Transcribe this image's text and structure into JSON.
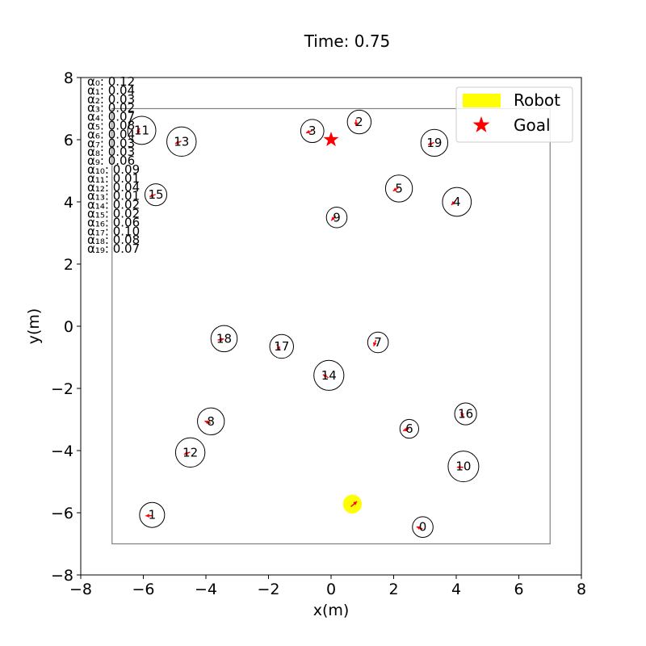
{
  "title": "Time: 0.75",
  "chart_data": {
    "type": "scatter",
    "title": "Time: 0.75",
    "xlabel": "x(m)",
    "ylabel": "y(m)",
    "xlim": [
      -8,
      8
    ],
    "ylim": [
      -8,
      8
    ],
    "xticks": [
      -8,
      -6,
      -4,
      -2,
      0,
      2,
      4,
      6,
      8
    ],
    "yticks": [
      -8,
      -6,
      -4,
      -2,
      0,
      2,
      4,
      6,
      8
    ],
    "grid": false,
    "legend_position": "top-right",
    "legend": [
      {
        "label": "Robot",
        "color": "#ffff00",
        "marker": "patch"
      },
      {
        "label": "Goal",
        "color": "#ff0000",
        "marker": "star"
      }
    ],
    "boundary": {
      "xmin": -7,
      "xmax": 7,
      "ymin": -7,
      "ymax": 7,
      "color": "#808080"
    },
    "goal": {
      "x": 0,
      "y": 6
    },
    "robot": {
      "x": 0.68,
      "y": -5.72,
      "radius": 0.3,
      "heading_deg": 40,
      "color": "#ffff00"
    },
    "humans": [
      {
        "id": "0",
        "x": 2.93,
        "y": -6.46,
        "r": 0.33,
        "heading_deg": 160
      },
      {
        "id": "1",
        "x": -5.72,
        "y": -6.07,
        "r": 0.4,
        "heading_deg": 180
      },
      {
        "id": "2",
        "x": 0.9,
        "y": 6.57,
        "r": 0.38,
        "heading_deg": 270
      },
      {
        "id": "3",
        "x": -0.6,
        "y": 6.28,
        "r": 0.37,
        "heading_deg": 200
      },
      {
        "id": "4",
        "x": 4.02,
        "y": 4.0,
        "r": 0.46,
        "heading_deg": 225
      },
      {
        "id": "5",
        "x": 2.17,
        "y": 4.43,
        "r": 0.43,
        "heading_deg": 210
      },
      {
        "id": "6",
        "x": 2.5,
        "y": -3.3,
        "r": 0.3,
        "heading_deg": 200
      },
      {
        "id": "7",
        "x": 1.5,
        "y": -0.52,
        "r": 0.33,
        "heading_deg": 250
      },
      {
        "id": "8",
        "x": -3.84,
        "y": -3.06,
        "r": 0.43,
        "heading_deg": 160
      },
      {
        "id": "9",
        "x": 0.18,
        "y": 3.5,
        "r": 0.33,
        "heading_deg": 225
      },
      {
        "id": "10",
        "x": 4.23,
        "y": -4.51,
        "r": 0.49,
        "heading_deg": 180
      },
      {
        "id": "11",
        "x": -6.05,
        "y": 6.3,
        "r": 0.45,
        "heading_deg": 250
      },
      {
        "id": "12",
        "x": -4.5,
        "y": -4.06,
        "r": 0.47,
        "heading_deg": 200
      },
      {
        "id": "13",
        "x": -4.78,
        "y": 5.94,
        "r": 0.47,
        "heading_deg": 200
      },
      {
        "id": "14",
        "x": -0.07,
        "y": -1.58,
        "r": 0.48,
        "heading_deg": 150
      },
      {
        "id": "15",
        "x": -5.6,
        "y": 4.23,
        "r": 0.35,
        "heading_deg": 200
      },
      {
        "id": "16",
        "x": 4.3,
        "y": -2.82,
        "r": 0.35,
        "heading_deg": 120
      },
      {
        "id": "17",
        "x": -1.58,
        "y": -0.65,
        "r": 0.38,
        "heading_deg": 300
      },
      {
        "id": "18",
        "x": -3.42,
        "y": -0.4,
        "r": 0.42,
        "heading_deg": 10
      },
      {
        "id": "19",
        "x": 3.3,
        "y": 5.9,
        "r": 0.43,
        "heading_deg": 200
      }
    ],
    "alphas": [
      {
        "label": "α₀",
        "value": "0.12"
      },
      {
        "label": "α₁",
        "value": "0.04"
      },
      {
        "label": "α₂",
        "value": "0.03"
      },
      {
        "label": "α₃",
        "value": "0.02"
      },
      {
        "label": "α₄",
        "value": "0.07"
      },
      {
        "label": "α₅",
        "value": "0.08"
      },
      {
        "label": "α₆",
        "value": "0.04"
      },
      {
        "label": "α₇",
        "value": "0.03"
      },
      {
        "label": "α₈",
        "value": "0.03"
      },
      {
        "label": "α₉",
        "value": "0.06"
      },
      {
        "label": "α₁₀",
        "value": "0.09"
      },
      {
        "label": "α₁₁",
        "value": "0.01"
      },
      {
        "label": "α₁₂",
        "value": "0.04"
      },
      {
        "label": "α₁₃",
        "value": "0.01"
      },
      {
        "label": "α₁₄",
        "value": "0.02"
      },
      {
        "label": "α₁₅",
        "value": "0.02"
      },
      {
        "label": "α₁₆",
        "value": "0.06"
      },
      {
        "label": "α₁₇",
        "value": "0.10"
      },
      {
        "label": "α₁₈",
        "value": "0.08"
      },
      {
        "label": "α₁₉",
        "value": "0.07"
      }
    ]
  }
}
